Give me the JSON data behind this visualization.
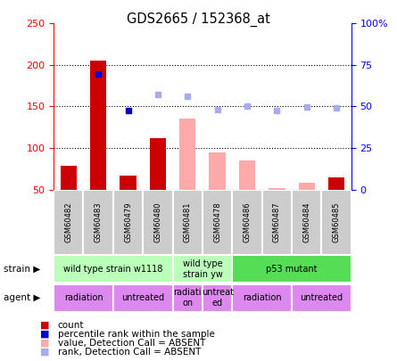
{
  "title": "GDS2665 / 152368_at",
  "samples": [
    "GSM60482",
    "GSM60483",
    "GSM60479",
    "GSM60480",
    "GSM60481",
    "GSM60478",
    "GSM60486",
    "GSM60487",
    "GSM60484",
    "GSM60485"
  ],
  "count_values": [
    79,
    205,
    67,
    112,
    null,
    null,
    null,
    null,
    null,
    65
  ],
  "percentile_rank": [
    null,
    189,
    145,
    null,
    null,
    null,
    null,
    null,
    null,
    null
  ],
  "value_absent": [
    null,
    null,
    null,
    null,
    135,
    95,
    85,
    52,
    58,
    null
  ],
  "rank_absent": [
    null,
    null,
    null,
    165,
    162,
    146,
    150,
    145,
    149,
    148
  ],
  "count_color": "#cc0000",
  "percentile_color": "#0000cc",
  "value_absent_color": "#ffaaaa",
  "rank_absent_color": "#aaaaee",
  "ylim_left": [
    50,
    250
  ],
  "ylim_right": [
    0,
    100
  ],
  "yticks_left": [
    50,
    100,
    150,
    200,
    250
  ],
  "yticks_right": [
    0,
    25,
    50,
    75,
    100
  ],
  "ytick_labels_right": [
    "0",
    "25",
    "50",
    "75",
    "100%"
  ],
  "strain_groups": [
    {
      "label": "wild type strain w1118",
      "start": 0,
      "end": 3,
      "color": "#bbffbb"
    },
    {
      "label": "wild type\nstrain yw",
      "start": 4,
      "end": 5,
      "color": "#bbffbb"
    },
    {
      "label": "p53 mutant",
      "start": 6,
      "end": 9,
      "color": "#55dd55"
    }
  ],
  "agent_groups": [
    {
      "label": "radiation",
      "start": 0,
      "end": 1
    },
    {
      "label": "untreated",
      "start": 2,
      "end": 3
    },
    {
      "label": "radiati\non",
      "start": 4,
      "end": 4
    },
    {
      "label": "untreat\ned",
      "start": 5,
      "end": 5
    },
    {
      "label": "radiation",
      "start": 6,
      "end": 7
    },
    {
      "label": "untreated",
      "start": 8,
      "end": 9
    }
  ],
  "agent_color": "#dd88ee",
  "legend_items": [
    {
      "label": "count",
      "color": "#cc0000"
    },
    {
      "label": "percentile rank within the sample",
      "color": "#0000cc"
    },
    {
      "label": "value, Detection Call = ABSENT",
      "color": "#ffaaaa"
    },
    {
      "label": "rank, Detection Call = ABSENT",
      "color": "#aaaaee"
    }
  ]
}
